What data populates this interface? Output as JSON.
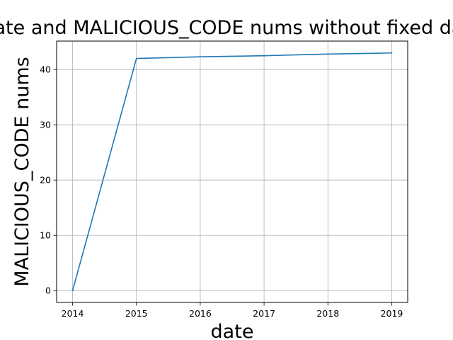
{
  "chart_data": {
    "type": "line",
    "title": "date and MALICIOUS_CODE nums without fixed date",
    "xlabel": "date",
    "ylabel": "MALICIOUS_CODE nums",
    "x": [
      2014,
      2015,
      2016,
      2017,
      2018,
      2019
    ],
    "series": [
      {
        "values": [
          0,
          42,
          42.3,
          42.5,
          42.8,
          43
        ],
        "color": "#1f77b4"
      }
    ],
    "xticks": [
      "2014",
      "2015",
      "2016",
      "2017",
      "2018",
      "2019"
    ],
    "yticks": [
      "0",
      "10",
      "20",
      "30",
      "40"
    ],
    "xlim": [
      2013.75,
      2019.25
    ],
    "ylim": [
      -2.15,
      45.15
    ],
    "grid": true
  }
}
